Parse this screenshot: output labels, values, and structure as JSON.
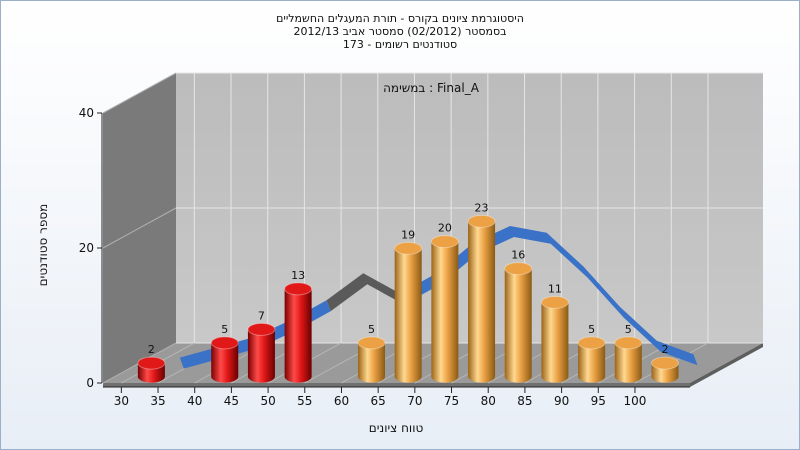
{
  "title_lines": [
    "היסטוגרמת ציונים בקורס - תורת המעגלים החשמליים",
    "בסמסטר  (02/2012)  סמסטר אביב 2012/13",
    "סטודנטים רשומים - 173"
  ],
  "chart_data": {
    "type": "bar",
    "annotation": "במשימה : Final_A",
    "xlabel": "טווח ציונים",
    "ylabel": "מספר סטודנטים",
    "ylim": [
      0,
      40
    ],
    "yticks": [
      0,
      20,
      40
    ],
    "xticks": [
      30,
      35,
      40,
      45,
      50,
      55,
      60,
      65,
      70,
      75,
      80,
      85,
      90,
      95,
      100
    ],
    "bars": [
      {
        "x": 32.5,
        "value": 2,
        "color": "red"
      },
      {
        "x": 42.5,
        "value": 5,
        "color": "red"
      },
      {
        "x": 47.5,
        "value": 7,
        "color": "red"
      },
      {
        "x": 52.5,
        "value": 13,
        "color": "red"
      },
      {
        "x": 62.5,
        "value": 5,
        "color": "orange"
      },
      {
        "x": 67.5,
        "value": 19,
        "color": "orange"
      },
      {
        "x": 72.5,
        "value": 20,
        "color": "orange"
      },
      {
        "x": 77.5,
        "value": 23,
        "color": "orange"
      },
      {
        "x": 82.5,
        "value": 16,
        "color": "orange"
      },
      {
        "x": 87.5,
        "value": 11,
        "color": "orange"
      },
      {
        "x": 92.5,
        "value": 5,
        "color": "orange"
      },
      {
        "x": 97.5,
        "value": 5,
        "color": "orange"
      },
      {
        "x": 102.5,
        "value": 2,
        "color": "orange"
      }
    ],
    "trend": {
      "x": [
        32.5,
        37.5,
        42.5,
        47.5,
        52.5,
        57.5,
        62.5,
        67.5,
        72.5,
        77.5,
        82.5,
        87.5,
        92.5,
        97.5,
        102.5
      ],
      "values": [
        0.5,
        2,
        3.5,
        6,
        9,
        13,
        10,
        13,
        17.5,
        20,
        19,
        14,
        8,
        3,
        1
      ],
      "color": "#3a72c8",
      "behind_color": "#5a5a5a"
    },
    "bar_colors": {
      "red": "#e01818",
      "orange": "#eba144"
    },
    "grid": true
  }
}
